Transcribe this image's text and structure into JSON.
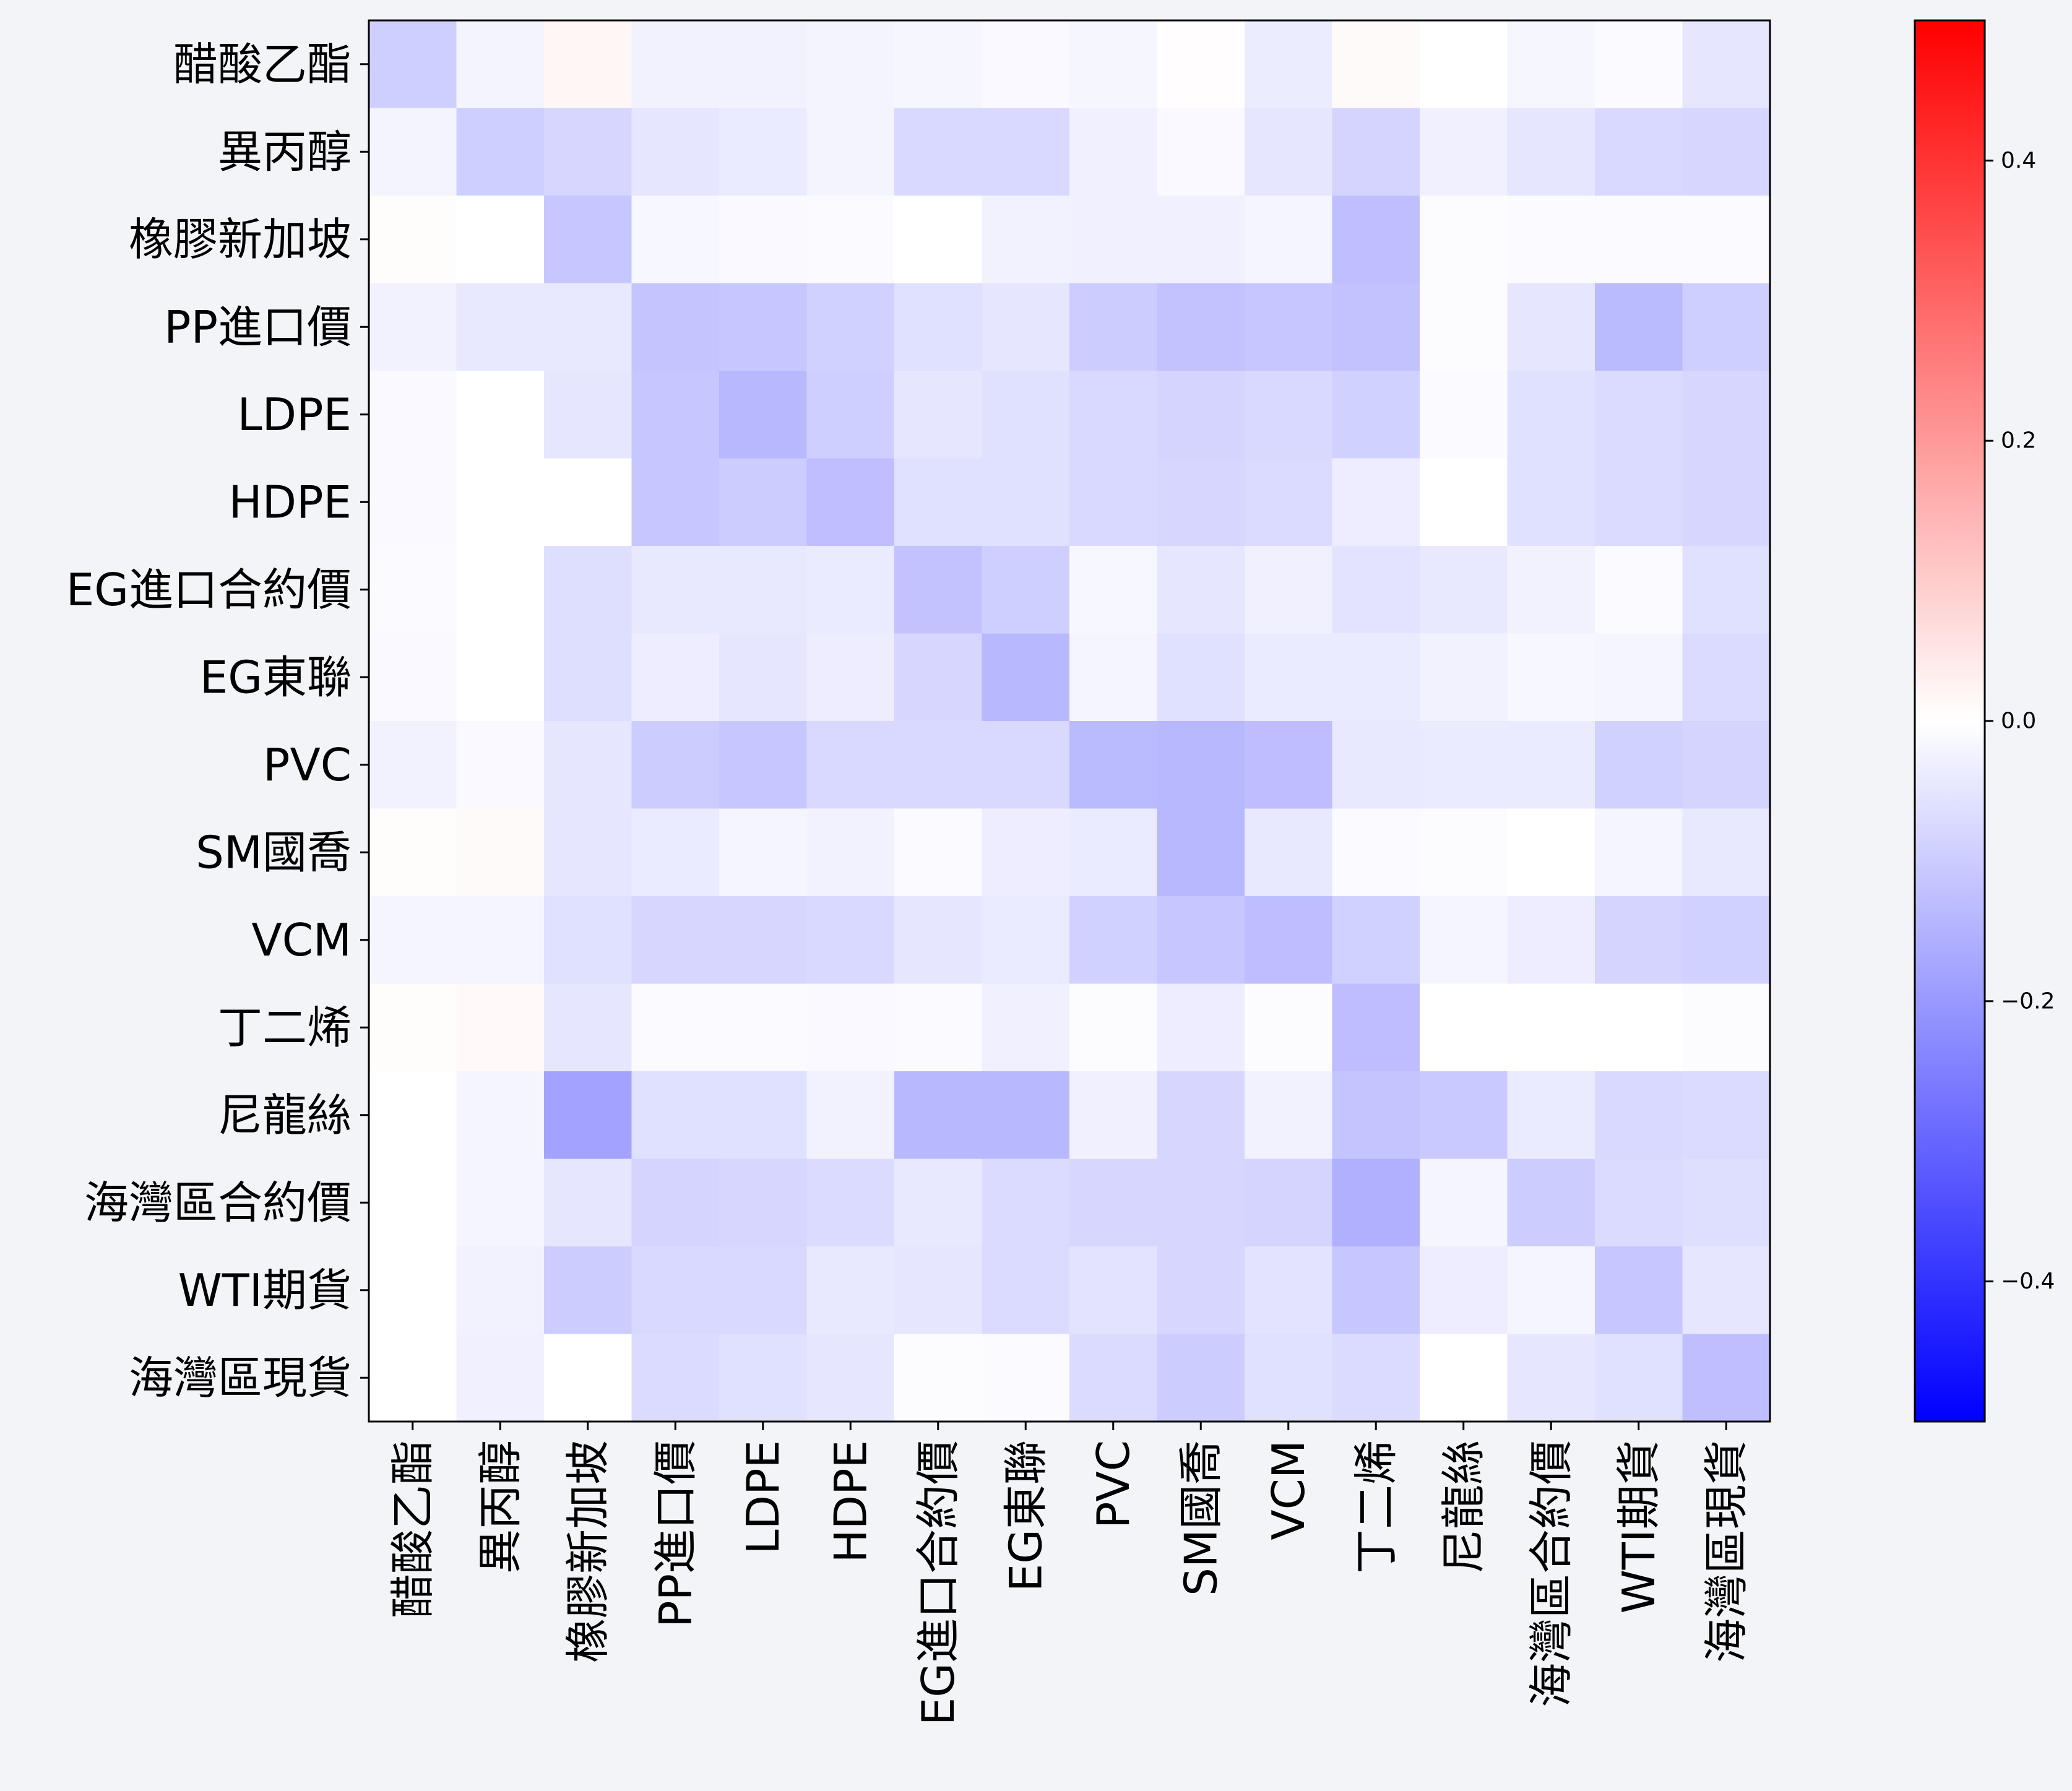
{
  "chart_data": {
    "type": "heatmap",
    "title": "",
    "xlabel": "",
    "ylabel": "",
    "labels": [
      "醋酸乙酯",
      "異丙醇",
      "橡膠新加坡",
      "PP進口價",
      "LDPE",
      "HDPE",
      "EG進口合約價",
      "EG東聯",
      "PVC",
      "SM國喬",
      "VCM",
      "丁二烯",
      "尼龍絲",
      "海灣區合約價",
      "WTI期貨",
      "海灣區現貨"
    ],
    "highlighted_label": "醋酸乙酯",
    "highlight_color": "#ff0000",
    "values": [
      [
        -0.095,
        -0.022,
        0.018,
        -0.025,
        -0.025,
        -0.022,
        -0.018,
        -0.012,
        -0.018,
        0.004,
        -0.038,
        0.01,
        0.0,
        -0.018,
        -0.008,
        -0.05
      ],
      [
        -0.022,
        -0.095,
        -0.08,
        -0.05,
        -0.04,
        -0.022,
        -0.075,
        -0.075,
        -0.03,
        -0.012,
        -0.05,
        -0.085,
        -0.03,
        -0.05,
        -0.075,
        -0.08
      ],
      [
        0.005,
        0.0,
        -0.11,
        -0.015,
        -0.012,
        -0.008,
        0.0,
        -0.025,
        -0.03,
        -0.03,
        -0.02,
        -0.125,
        -0.005,
        -0.01,
        -0.01,
        -0.01
      ],
      [
        -0.025,
        -0.045,
        -0.045,
        -0.115,
        -0.11,
        -0.09,
        -0.06,
        -0.05,
        -0.1,
        -0.12,
        -0.11,
        -0.12,
        -0.005,
        -0.05,
        -0.135,
        -0.095
      ],
      [
        -0.012,
        0.0,
        -0.05,
        -0.11,
        -0.14,
        -0.095,
        -0.05,
        -0.06,
        -0.075,
        -0.085,
        -0.075,
        -0.09,
        -0.01,
        -0.06,
        -0.07,
        -0.08
      ],
      [
        -0.012,
        0.0,
        0.0,
        -0.11,
        -0.1,
        -0.125,
        -0.06,
        -0.06,
        -0.075,
        -0.08,
        -0.07,
        -0.035,
        0.0,
        -0.06,
        -0.07,
        -0.08
      ],
      [
        -0.01,
        0.0,
        -0.065,
        -0.045,
        -0.045,
        -0.04,
        -0.12,
        -0.095,
        -0.015,
        -0.05,
        -0.03,
        -0.055,
        -0.045,
        -0.025,
        -0.01,
        -0.06
      ],
      [
        -0.012,
        0.0,
        -0.065,
        -0.035,
        -0.05,
        -0.035,
        -0.08,
        -0.14,
        -0.02,
        -0.06,
        -0.04,
        -0.04,
        -0.025,
        -0.015,
        -0.02,
        -0.07
      ],
      [
        -0.025,
        -0.012,
        -0.05,
        -0.1,
        -0.11,
        -0.075,
        -0.075,
        -0.075,
        -0.135,
        -0.14,
        -0.13,
        -0.045,
        -0.04,
        -0.04,
        -0.09,
        -0.085
      ],
      [
        0.005,
        0.01,
        -0.05,
        -0.04,
        -0.02,
        -0.025,
        -0.008,
        -0.035,
        -0.04,
        -0.14,
        -0.045,
        -0.01,
        -0.005,
        0.0,
        -0.02,
        -0.045
      ],
      [
        -0.02,
        -0.02,
        -0.06,
        -0.08,
        -0.08,
        -0.075,
        -0.05,
        -0.04,
        -0.09,
        -0.11,
        -0.13,
        -0.09,
        -0.02,
        -0.035,
        -0.085,
        -0.09
      ],
      [
        0.005,
        0.012,
        -0.05,
        -0.01,
        -0.01,
        -0.012,
        -0.008,
        -0.03,
        -0.005,
        -0.035,
        -0.005,
        -0.13,
        0.0,
        0.0,
        0.0,
        -0.005
      ],
      [
        0.0,
        -0.02,
        -0.18,
        -0.06,
        -0.06,
        -0.025,
        -0.14,
        -0.14,
        -0.03,
        -0.08,
        -0.025,
        -0.115,
        -0.105,
        -0.04,
        -0.075,
        -0.07
      ],
      [
        0.0,
        -0.02,
        -0.05,
        -0.085,
        -0.08,
        -0.07,
        -0.045,
        -0.07,
        -0.08,
        -0.08,
        -0.085,
        -0.155,
        -0.02,
        -0.1,
        -0.07,
        -0.065
      ],
      [
        0.0,
        -0.025,
        -0.1,
        -0.075,
        -0.075,
        -0.045,
        -0.05,
        -0.07,
        -0.055,
        -0.08,
        -0.055,
        -0.11,
        -0.035,
        -0.02,
        -0.11,
        -0.05
      ],
      [
        0.0,
        -0.03,
        0.0,
        -0.07,
        -0.06,
        -0.05,
        -0.005,
        -0.008,
        -0.07,
        -0.1,
        -0.06,
        -0.07,
        0.0,
        -0.05,
        -0.06,
        -0.125
      ]
    ],
    "vmin": -0.5,
    "vmax": 0.5,
    "colormap": "bwr",
    "colorbar_ticks": [
      0.4,
      0.2,
      0.0,
      -0.2,
      -0.4
    ],
    "colorbar_tick_labels": [
      "0.4",
      "0.2",
      "0.0",
      "−0.2",
      "−0.4"
    ],
    "colors": {
      "low": "#0000ff",
      "mid": "#ffffff",
      "high": "#ff0000",
      "background": "#f3f4f7"
    }
  }
}
